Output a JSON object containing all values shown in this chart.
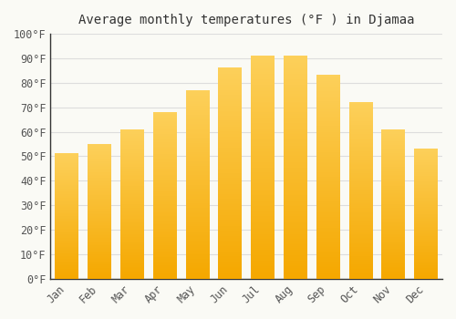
{
  "title": "Average monthly temperatures (°F ) in Djamaa",
  "months": [
    "Jan",
    "Feb",
    "Mar",
    "Apr",
    "May",
    "Jun",
    "Jul",
    "Aug",
    "Sep",
    "Oct",
    "Nov",
    "Dec"
  ],
  "values": [
    51,
    55,
    61,
    68,
    77,
    86,
    91,
    91,
    83,
    72,
    61,
    53
  ],
  "bar_color_bottom": "#F5A800",
  "bar_color_top": "#FDD05A",
  "background_color": "#FAFAF5",
  "grid_color": "#DDDDDD",
  "spine_color": "#333333",
  "text_color": "#555555",
  "ylim": [
    0,
    100
  ],
  "title_fontsize": 10,
  "tick_fontsize": 8.5,
  "font_family": "monospace"
}
